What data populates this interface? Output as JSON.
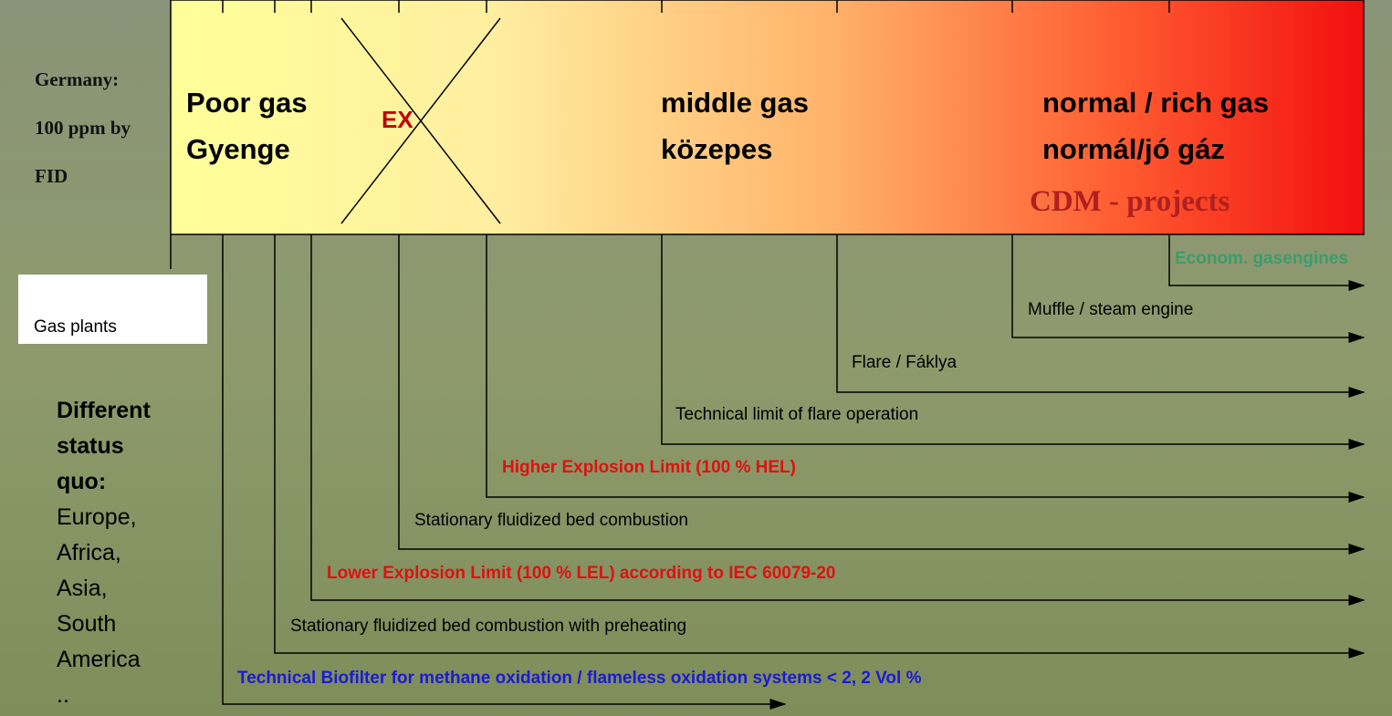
{
  "left_notes": {
    "germany": [
      "Germany:",
      "100 ppm by",
      "FID"
    ],
    "gas_plants": "Gas plants",
    "status_heading": [
      "Different",
      "status",
      "quo:"
    ],
    "status_regions": [
      "Europe,",
      "Africa,",
      "Asia,",
      "South",
      "America",
      ".."
    ]
  },
  "gas_bar": {
    "poor": [
      "Poor gas",
      "Gyenge"
    ],
    "ex": "EX",
    "middle": [
      "middle gas",
      "közepes"
    ],
    "rich": [
      "normal / rich gas",
      "normál/jó gáz"
    ],
    "cdm": "CDM - projects"
  },
  "applications": [
    "Econom. gasengines",
    "Muffle / steam engine",
    "Flare / Fáklya",
    "Technical limit of flare operation",
    "Higher Explosion Limit (100 % HEL)",
    "Stationary fluidized bed combustion",
    "Lower Explosion Limit (100 % LEL) according to IEC 60079-20",
    "Stationary fluidized bed combustion with preheating",
    "Technical Biofilter for methane oxidation / flameless oxidation systems < 2, 2 Vol %"
  ]
}
